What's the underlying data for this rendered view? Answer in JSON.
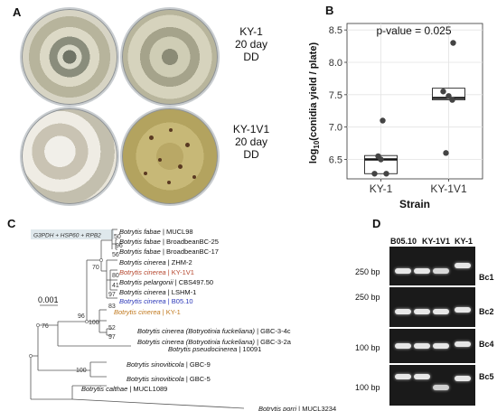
{
  "panelA": {
    "letter": "A",
    "labels": [
      {
        "strain": "KY-1",
        "days": "20 day",
        "cond": "DD"
      },
      {
        "strain": "KY-1V1",
        "days": "20 day",
        "cond": "DD"
      }
    ]
  },
  "panelB": {
    "letter": "B",
    "pvalue": "p-value = 0.025",
    "ylabel": "log10(conidia yield / plate)",
    "xlabel": "Strain",
    "yticks": [
      "6.5",
      "7.0",
      "7.5",
      "8.0",
      "8.5"
    ]
  },
  "chart_data": {
    "type": "box",
    "title": "p-value = 0.025",
    "xlabel": "Strain",
    "ylabel": "log10(conidia yield / plate)",
    "ylim": [
      6.2,
      8.6
    ],
    "categories": [
      "KY-1",
      "KY-1V1"
    ],
    "points": [
      {
        "category": "KY-1",
        "values": [
          6.28,
          6.28,
          6.5,
          6.55,
          7.1
        ]
      },
      {
        "category": "KY-1V1",
        "values": [
          6.6,
          7.42,
          7.48,
          7.55,
          8.3
        ]
      }
    ],
    "box": [
      {
        "category": "KY-1",
        "q1": 6.28,
        "median": 6.5,
        "q3": 6.56,
        "whisker_low": 6.28,
        "whisker_high": 6.56
      },
      {
        "category": "KY-1V1",
        "q1": 7.42,
        "median": 7.45,
        "q3": 7.6,
        "whisker_low": 7.42,
        "whisker_high": 7.6
      }
    ],
    "grid": true
  },
  "panelC": {
    "letter": "C",
    "legend_box": "G3PDH + HSP60 + RPB2",
    "scale": "0.001",
    "bootstrap": [
      "50",
      "96",
      "56",
      "70",
      "80",
      "41",
      "97",
      "96",
      "83",
      "52",
      "100",
      "97",
      "76",
      "100"
    ],
    "taxa": [
      {
        "genus": "Botrytis fabae",
        "suffix": " | MUCL98",
        "color": "#111111"
      },
      {
        "genus": "Botrytis fabae",
        "suffix": " | BroadbeanBC-25",
        "color": "#111111"
      },
      {
        "genus": "Botrytis fabae",
        "suffix": " | BroadbeanBC-17",
        "color": "#111111"
      },
      {
        "genus": "Botrytis cinerea",
        "suffix": " | ZHM-2",
        "color": "#111111"
      },
      {
        "genus": "Botrytis cinerea",
        "suffix": " | KY-1V1",
        "color": "#b5452c"
      },
      {
        "genus": "Botrytis pelargonii",
        "suffix": " | CBS497.50",
        "color": "#111111"
      },
      {
        "genus": "Botrytis cinerea",
        "suffix": " | LSHM-1",
        "color": "#111111"
      },
      {
        "genus": "Botrytis cinerea",
        "suffix": " | B05.10",
        "color": "#2b37b8"
      },
      {
        "genus": "Botrytis cinerea",
        "suffix": " | KY-1",
        "color": "#c0781d"
      },
      {
        "genus": "Botrytis cinerea (Botryotinia fuckeliana)",
        "suffix": " | GBC-3-4c",
        "color": "#111111"
      },
      {
        "genus": "Botrytis cinerea (Botryotinia fuckeliana)",
        "suffix": " | GBC-3-2a",
        "color": "#111111"
      },
      {
        "genus": "Botrytis pseudocinerea",
        "suffix": " | 10091",
        "color": "#111111"
      },
      {
        "genus": "Botrytis sinoviticola",
        "suffix": " | GBC-9",
        "color": "#111111"
      },
      {
        "genus": "Botrytis sinoviticola",
        "suffix": " | GBC-5",
        "color": "#111111"
      },
      {
        "genus": "Botrytis calthae",
        "suffix": " | MUCL1089",
        "color": "#111111"
      },
      {
        "genus": "Botrytis porri",
        "suffix": " | MUCL3234",
        "color": "#111111"
      }
    ]
  },
  "panelD": {
    "letter": "D",
    "columns": [
      "B05.10",
      "KY-1V1",
      "KY-1"
    ],
    "rows": [
      {
        "gene": "Bc1",
        "size": "250 bp"
      },
      {
        "gene": "Bc2",
        "size": "250 bp"
      },
      {
        "gene": "Bc4",
        "size": "100 bp"
      },
      {
        "gene": "Bc5",
        "size": "100 bp"
      }
    ]
  }
}
